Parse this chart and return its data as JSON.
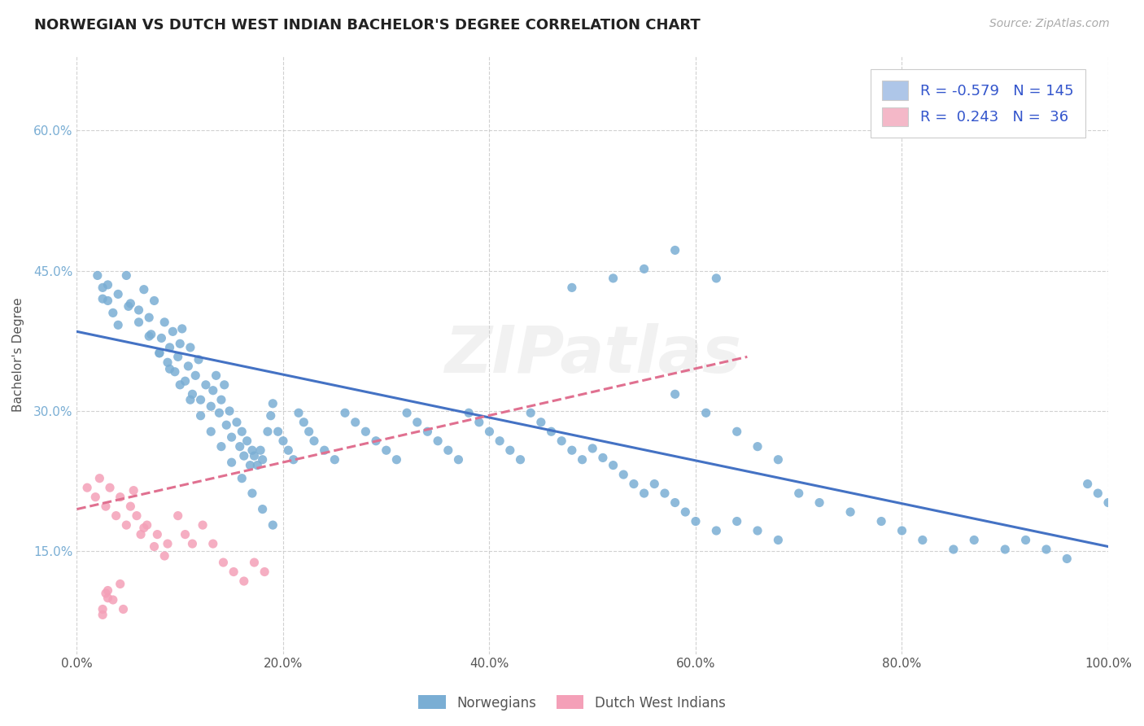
{
  "title": "NORWEGIAN VS DUTCH WEST INDIAN BACHELOR'S DEGREE CORRELATION CHART",
  "source_text": "Source: ZipAtlas.com",
  "ylabel": "Bachelor's Degree",
  "xlim": [
    0.0,
    1.0
  ],
  "ylim": [
    0.04,
    0.68
  ],
  "xticks": [
    0.0,
    0.2,
    0.4,
    0.6,
    0.8,
    1.0
  ],
  "xtick_labels": [
    "0.0%",
    "20.0%",
    "40.0%",
    "60.0%",
    "80.0%",
    "100.0%"
  ],
  "yticks": [
    0.15,
    0.3,
    0.45,
    0.6
  ],
  "ytick_labels": [
    "15.0%",
    "30.0%",
    "45.0%",
    "60.0%"
  ],
  "legend_label_1": "R = -0.579   N = 145",
  "legend_label_2": "R =  0.243   N =  36",
  "legend_color_1": "#aec6e8",
  "legend_color_2": "#f4b8c8",
  "norwegian_color": "#7aaed4",
  "dutch_color": "#f4a0b8",
  "trend_norwegian_color": "#4472c4",
  "trend_dutch_color": "#e07090",
  "background_color": "#ffffff",
  "grid_color": "#cccccc",
  "norwegian_x": [
    0.025,
    0.03,
    0.04,
    0.048,
    0.052,
    0.06,
    0.065,
    0.07,
    0.072,
    0.075,
    0.08,
    0.082,
    0.085,
    0.088,
    0.09,
    0.093,
    0.095,
    0.098,
    0.1,
    0.102,
    0.105,
    0.108,
    0.11,
    0.112,
    0.115,
    0.118,
    0.12,
    0.125,
    0.13,
    0.132,
    0.135,
    0.138,
    0.14,
    0.143,
    0.145,
    0.148,
    0.15,
    0.155,
    0.158,
    0.16,
    0.162,
    0.165,
    0.168,
    0.17,
    0.172,
    0.175,
    0.178,
    0.18,
    0.185,
    0.188,
    0.19,
    0.195,
    0.2,
    0.205,
    0.21,
    0.215,
    0.22,
    0.225,
    0.23,
    0.24,
    0.25,
    0.26,
    0.27,
    0.28,
    0.29,
    0.3,
    0.31,
    0.32,
    0.33,
    0.34,
    0.35,
    0.36,
    0.37,
    0.38,
    0.39,
    0.4,
    0.41,
    0.42,
    0.43,
    0.44,
    0.45,
    0.46,
    0.47,
    0.48,
    0.49,
    0.5,
    0.51,
    0.52,
    0.53,
    0.54,
    0.55,
    0.56,
    0.57,
    0.58,
    0.59,
    0.6,
    0.62,
    0.64,
    0.66,
    0.68,
    0.7,
    0.72,
    0.75,
    0.78,
    0.8,
    0.82,
    0.85,
    0.87,
    0.9,
    0.92,
    0.94,
    0.96,
    0.98,
    0.99,
    1.0,
    0.48,
    0.52,
    0.55,
    0.58,
    0.62,
    0.05,
    0.06,
    0.07,
    0.08,
    0.09,
    0.1,
    0.11,
    0.12,
    0.13,
    0.14,
    0.15,
    0.16,
    0.17,
    0.18,
    0.19,
    0.02,
    0.025,
    0.03,
    0.035,
    0.04,
    0.58,
    0.61,
    0.64,
    0.66,
    0.68
  ],
  "norwegian_y": [
    0.42,
    0.435,
    0.425,
    0.445,
    0.415,
    0.408,
    0.43,
    0.4,
    0.382,
    0.418,
    0.362,
    0.378,
    0.395,
    0.352,
    0.368,
    0.385,
    0.342,
    0.358,
    0.372,
    0.388,
    0.332,
    0.348,
    0.368,
    0.318,
    0.338,
    0.355,
    0.312,
    0.328,
    0.305,
    0.322,
    0.338,
    0.298,
    0.312,
    0.328,
    0.285,
    0.3,
    0.272,
    0.288,
    0.262,
    0.278,
    0.252,
    0.268,
    0.242,
    0.258,
    0.252,
    0.242,
    0.258,
    0.248,
    0.278,
    0.295,
    0.308,
    0.278,
    0.268,
    0.258,
    0.248,
    0.298,
    0.288,
    0.278,
    0.268,
    0.258,
    0.248,
    0.298,
    0.288,
    0.278,
    0.268,
    0.258,
    0.248,
    0.298,
    0.288,
    0.278,
    0.268,
    0.258,
    0.248,
    0.298,
    0.288,
    0.278,
    0.268,
    0.258,
    0.248,
    0.298,
    0.288,
    0.278,
    0.268,
    0.258,
    0.248,
    0.26,
    0.25,
    0.242,
    0.232,
    0.222,
    0.212,
    0.222,
    0.212,
    0.202,
    0.192,
    0.182,
    0.172,
    0.182,
    0.172,
    0.162,
    0.212,
    0.202,
    0.192,
    0.182,
    0.172,
    0.162,
    0.152,
    0.162,
    0.152,
    0.162,
    0.152,
    0.142,
    0.222,
    0.212,
    0.202,
    0.432,
    0.442,
    0.452,
    0.472,
    0.442,
    0.412,
    0.395,
    0.38,
    0.362,
    0.345,
    0.328,
    0.312,
    0.295,
    0.278,
    0.262,
    0.245,
    0.228,
    0.212,
    0.195,
    0.178,
    0.445,
    0.432,
    0.418,
    0.405,
    0.392,
    0.318,
    0.298,
    0.278,
    0.262,
    0.248
  ],
  "dutch_x": [
    0.01,
    0.018,
    0.022,
    0.028,
    0.032,
    0.038,
    0.042,
    0.048,
    0.052,
    0.058,
    0.062,
    0.068,
    0.078,
    0.088,
    0.098,
    0.105,
    0.112,
    0.122,
    0.132,
    0.142,
    0.152,
    0.162,
    0.172,
    0.182,
    0.055,
    0.065,
    0.075,
    0.085,
    0.042,
    0.03,
    0.025,
    0.035,
    0.025,
    0.028,
    0.03,
    0.045
  ],
  "dutch_y": [
    0.218,
    0.208,
    0.228,
    0.198,
    0.218,
    0.188,
    0.208,
    0.178,
    0.198,
    0.188,
    0.168,
    0.178,
    0.168,
    0.158,
    0.188,
    0.168,
    0.158,
    0.178,
    0.158,
    0.138,
    0.128,
    0.118,
    0.138,
    0.128,
    0.215,
    0.175,
    0.155,
    0.145,
    0.115,
    0.1,
    0.088,
    0.098,
    0.082,
    0.105,
    0.108,
    0.088
  ],
  "norwegian_trend_x": [
    0.0,
    1.0
  ],
  "norwegian_trend_y": [
    0.385,
    0.155
  ],
  "dutch_trend_x": [
    0.0,
    0.65
  ],
  "dutch_trend_y": [
    0.195,
    0.358
  ]
}
